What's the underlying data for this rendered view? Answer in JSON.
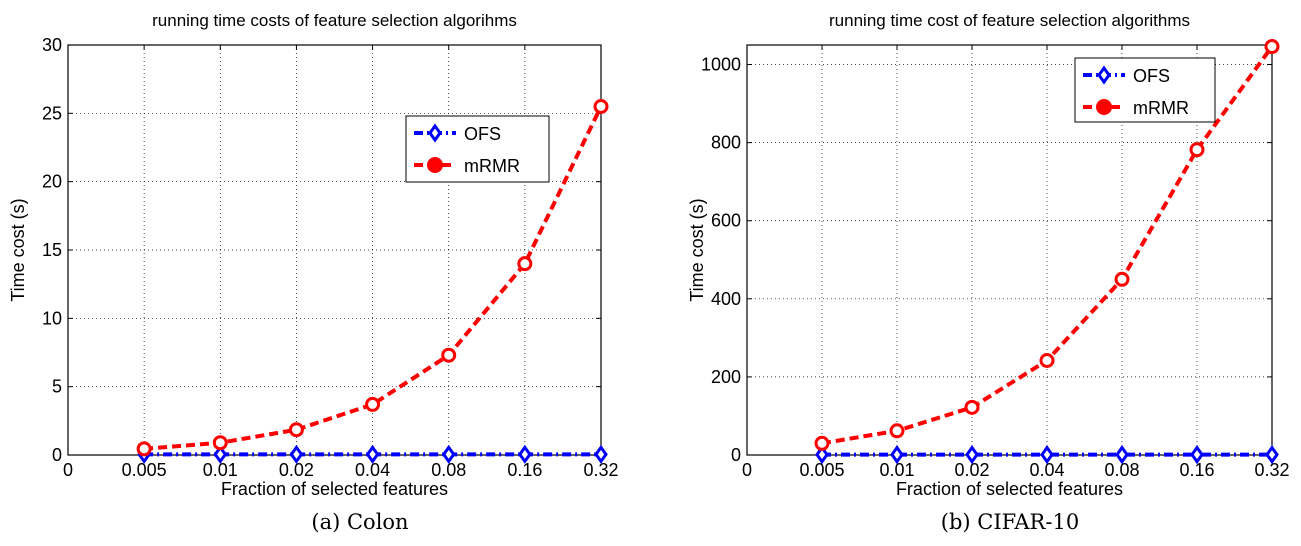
{
  "chart_data": [
    {
      "type": "line",
      "title": "running time costs of feature selection algorihms",
      "xlabel": "Fraction of selected features",
      "ylabel": "Time cost (s)",
      "categories": [
        "0",
        "0.005",
        "0.01",
        "0.02",
        "0.04",
        "0.08",
        "0.16",
        "0.32"
      ],
      "yticks": [
        "0",
        "5",
        "10",
        "15",
        "20",
        "25",
        "30"
      ],
      "ylim": [
        0,
        30
      ],
      "grid": true,
      "legend_position": "upper-right",
      "series": [
        {
          "name": "OFS",
          "color": "#0000ff",
          "marker": "diamond",
          "x": [
            "0.005",
            "0.01",
            "0.02",
            "0.04",
            "0.08",
            "0.16",
            "0.32"
          ],
          "values": [
            0.05,
            0.05,
            0.05,
            0.05,
            0.05,
            0.05,
            0.05
          ]
        },
        {
          "name": "mRMR",
          "color": "#ff0000",
          "marker": "circle",
          "x": [
            "0.005",
            "0.01",
            "0.02",
            "0.04",
            "0.08",
            "0.16",
            "0.32"
          ],
          "values": [
            0.45,
            0.9,
            1.85,
            3.7,
            7.3,
            14.0,
            25.5
          ]
        }
      ],
      "caption": "(a) Colon"
    },
    {
      "type": "line",
      "title": "running time cost of feature selection algorithms",
      "xlabel": "Fraction of selected features",
      "ylabel": "Time cost (s)",
      "categories": [
        "0",
        "0.005",
        "0.01",
        "0.02",
        "0.04",
        "0.08",
        "0.16",
        "0.32"
      ],
      "yticks": [
        "0",
        "200",
        "400",
        "600",
        "800",
        "1000"
      ],
      "ylim": [
        0,
        1050
      ],
      "grid": true,
      "legend_position": "upper-right",
      "series": [
        {
          "name": "OFS",
          "color": "#0000ff",
          "marker": "diamond",
          "x": [
            "0.005",
            "0.01",
            "0.02",
            "0.04",
            "0.08",
            "0.16",
            "0.32"
          ],
          "values": [
            1,
            1,
            1,
            1,
            1,
            1,
            1
          ]
        },
        {
          "name": "mRMR",
          "color": "#ff0000",
          "marker": "circle",
          "x": [
            "0.005",
            "0.01",
            "0.02",
            "0.04",
            "0.08",
            "0.16",
            "0.32"
          ],
          "values": [
            30,
            62,
            122,
            242,
            450,
            782,
            1046
          ]
        }
      ],
      "caption": "(b) CIFAR-10"
    }
  ]
}
